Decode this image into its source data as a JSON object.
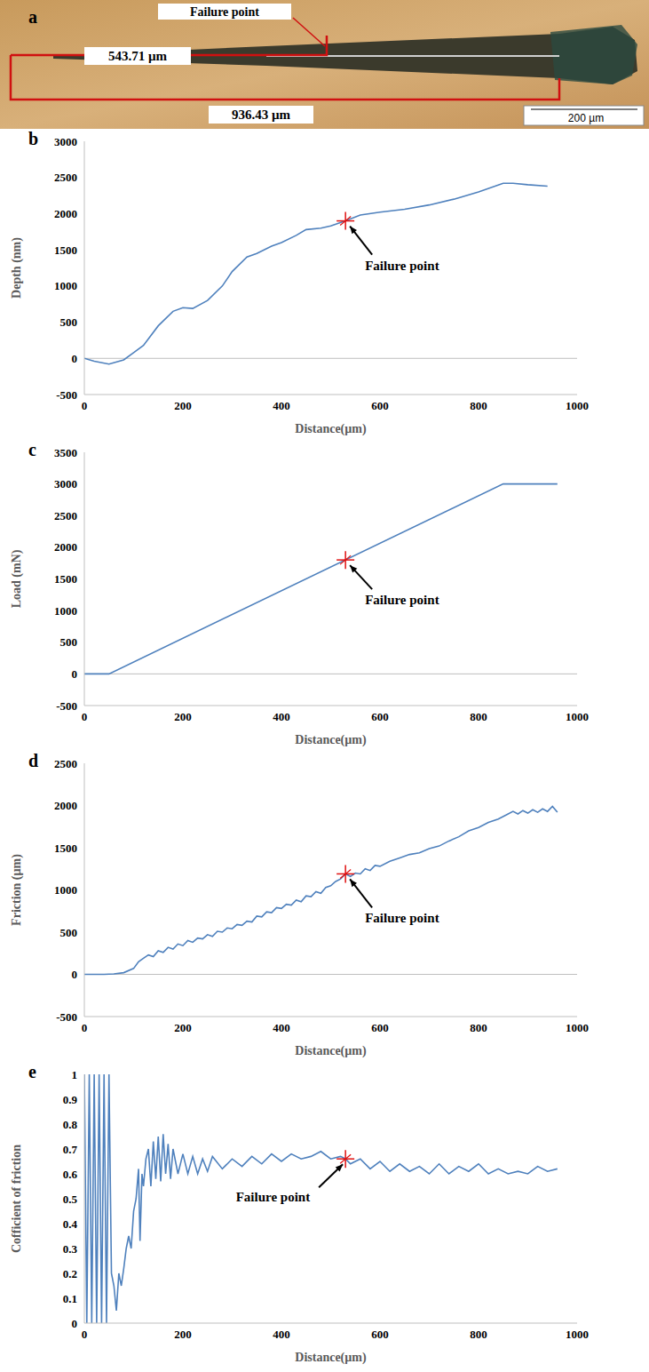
{
  "micrograph": {
    "panel": "a",
    "annotation": "Failure point",
    "measurements": [
      "543.71 µm",
      "936.43 µm"
    ],
    "scale_bar": "200 µm"
  },
  "chart_data": [
    {
      "panel": "b",
      "type": "line",
      "x_label": "Distance(µm)",
      "y_label": "Depth (nm)",
      "xlim": [
        0,
        1000
      ],
      "xticks": [
        0,
        200,
        400,
        600,
        800,
        1000
      ],
      "ylim": [
        -500,
        3000
      ],
      "yticks": [
        -500,
        0,
        500,
        1000,
        1500,
        2000,
        2500,
        3000
      ],
      "color": "#4f81bd",
      "x": [
        0,
        20,
        50,
        80,
        100,
        120,
        150,
        180,
        200,
        220,
        250,
        280,
        300,
        330,
        350,
        380,
        400,
        430,
        450,
        480,
        500,
        530,
        560,
        600,
        650,
        700,
        750,
        800,
        850,
        870,
        900,
        940
      ],
      "values": [
        0,
        -40,
        -80,
        -20,
        80,
        180,
        450,
        650,
        700,
        690,
        800,
        1000,
        1200,
        1400,
        1450,
        1550,
        1600,
        1700,
        1780,
        1800,
        1830,
        1900,
        1980,
        2020,
        2060,
        2120,
        2200,
        2300,
        2420,
        2420,
        2400,
        2380
      ],
      "annotations": [
        {
          "text": "Failure point",
          "x": 530,
          "y": 1900
        }
      ]
    },
    {
      "panel": "c",
      "type": "line",
      "x_label": "Distance(µm)",
      "y_label": "Load (mN)",
      "xlim": [
        0,
        1000
      ],
      "xticks": [
        0,
        200,
        400,
        600,
        800,
        1000
      ],
      "ylim": [
        -500,
        3500
      ],
      "yticks": [
        -500,
        0,
        500,
        1000,
        1500,
        2000,
        2500,
        3000,
        3500
      ],
      "color": "#4f81bd",
      "x": [
        0,
        50,
        850,
        960
      ],
      "values": [
        0,
        0,
        3000,
        3000
      ],
      "annotations": [
        {
          "text": "Failure point",
          "x": 530,
          "y": 1800
        }
      ]
    },
    {
      "panel": "d",
      "type": "line",
      "x_label": "Distance(µm)",
      "y_label": "Friction (µm)",
      "xlim": [
        0,
        1000
      ],
      "xticks": [
        0,
        200,
        400,
        600,
        800,
        1000
      ],
      "ylim": [
        -500,
        2500
      ],
      "yticks": [
        -500,
        0,
        500,
        1000,
        1500,
        2000,
        2500
      ],
      "color": "#4f81bd",
      "x": [
        0,
        20,
        40,
        60,
        80,
        100,
        110,
        120,
        130,
        140,
        150,
        160,
        170,
        180,
        190,
        200,
        210,
        220,
        230,
        240,
        250,
        260,
        270,
        280,
        290,
        300,
        310,
        320,
        330,
        340,
        350,
        360,
        370,
        380,
        390,
        400,
        410,
        420,
        430,
        440,
        450,
        460,
        470,
        480,
        490,
        500,
        510,
        520,
        530,
        540,
        550,
        560,
        570,
        580,
        590,
        600,
        620,
        640,
        660,
        680,
        700,
        720,
        740,
        760,
        780,
        800,
        820,
        840,
        860,
        870,
        880,
        890,
        900,
        910,
        920,
        930,
        940,
        950,
        960
      ],
      "values": [
        0,
        0,
        0,
        5,
        20,
        70,
        150,
        190,
        230,
        210,
        280,
        260,
        320,
        300,
        360,
        340,
        400,
        380,
        430,
        420,
        470,
        450,
        510,
        500,
        550,
        540,
        590,
        580,
        630,
        620,
        690,
        680,
        740,
        730,
        790,
        780,
        830,
        820,
        880,
        860,
        930,
        920,
        980,
        960,
        1030,
        1050,
        1100,
        1130,
        1190,
        1160,
        1200,
        1190,
        1250,
        1230,
        1290,
        1280,
        1340,
        1380,
        1420,
        1440,
        1490,
        1520,
        1580,
        1630,
        1700,
        1740,
        1800,
        1840,
        1900,
        1930,
        1900,
        1940,
        1910,
        1950,
        1920,
        1960,
        1930,
        1990,
        1920
      ],
      "annotations": [
        {
          "text": "Failure point",
          "x": 530,
          "y": 1190
        }
      ]
    },
    {
      "panel": "e",
      "type": "line",
      "x_label": "Distance(µm)",
      "y_label": "Cofficient of friction",
      "xlim": [
        0,
        1000
      ],
      "xticks": [
        0,
        200,
        400,
        600,
        800,
        1000
      ],
      "ylim": [
        0,
        1
      ],
      "yticks": [
        0,
        0.1,
        0.2,
        0.3,
        0.4,
        0.5,
        0.6,
        0.7,
        0.8,
        0.9,
        1
      ],
      "color": "#4f81bd",
      "x": [
        0,
        5,
        10,
        15,
        20,
        25,
        30,
        35,
        40,
        45,
        50,
        55,
        60,
        65,
        70,
        75,
        80,
        85,
        90,
        95,
        100,
        105,
        110,
        113,
        117,
        120,
        125,
        130,
        135,
        140,
        145,
        150,
        155,
        160,
        165,
        170,
        175,
        180,
        190,
        200,
        210,
        220,
        230,
        240,
        250,
        260,
        280,
        300,
        320,
        340,
        360,
        380,
        400,
        420,
        440,
        460,
        480,
        500,
        520,
        530,
        540,
        560,
        580,
        600,
        620,
        640,
        660,
        680,
        700,
        720,
        740,
        760,
        780,
        800,
        820,
        840,
        860,
        880,
        900,
        920,
        940,
        960
      ],
      "values": [
        1,
        0,
        1,
        0,
        1,
        0,
        1,
        0,
        1,
        0,
        1,
        0.2,
        0.15,
        0.05,
        0.2,
        0.15,
        0.22,
        0.3,
        0.35,
        0.3,
        0.45,
        0.5,
        0.62,
        0.33,
        0.6,
        0.55,
        0.66,
        0.7,
        0.55,
        0.73,
        0.58,
        0.75,
        0.57,
        0.76,
        0.6,
        0.72,
        0.58,
        0.7,
        0.6,
        0.68,
        0.6,
        0.67,
        0.6,
        0.66,
        0.61,
        0.67,
        0.62,
        0.66,
        0.63,
        0.67,
        0.64,
        0.68,
        0.65,
        0.68,
        0.66,
        0.67,
        0.69,
        0.66,
        0.67,
        0.66,
        0.64,
        0.66,
        0.62,
        0.65,
        0.61,
        0.64,
        0.61,
        0.63,
        0.6,
        0.64,
        0.6,
        0.63,
        0.61,
        0.64,
        0.6,
        0.62,
        0.6,
        0.61,
        0.6,
        0.63,
        0.61,
        0.62
      ],
      "annotations": [
        {
          "text": "Failure point",
          "x": 530,
          "y": 0.66
        }
      ]
    }
  ]
}
